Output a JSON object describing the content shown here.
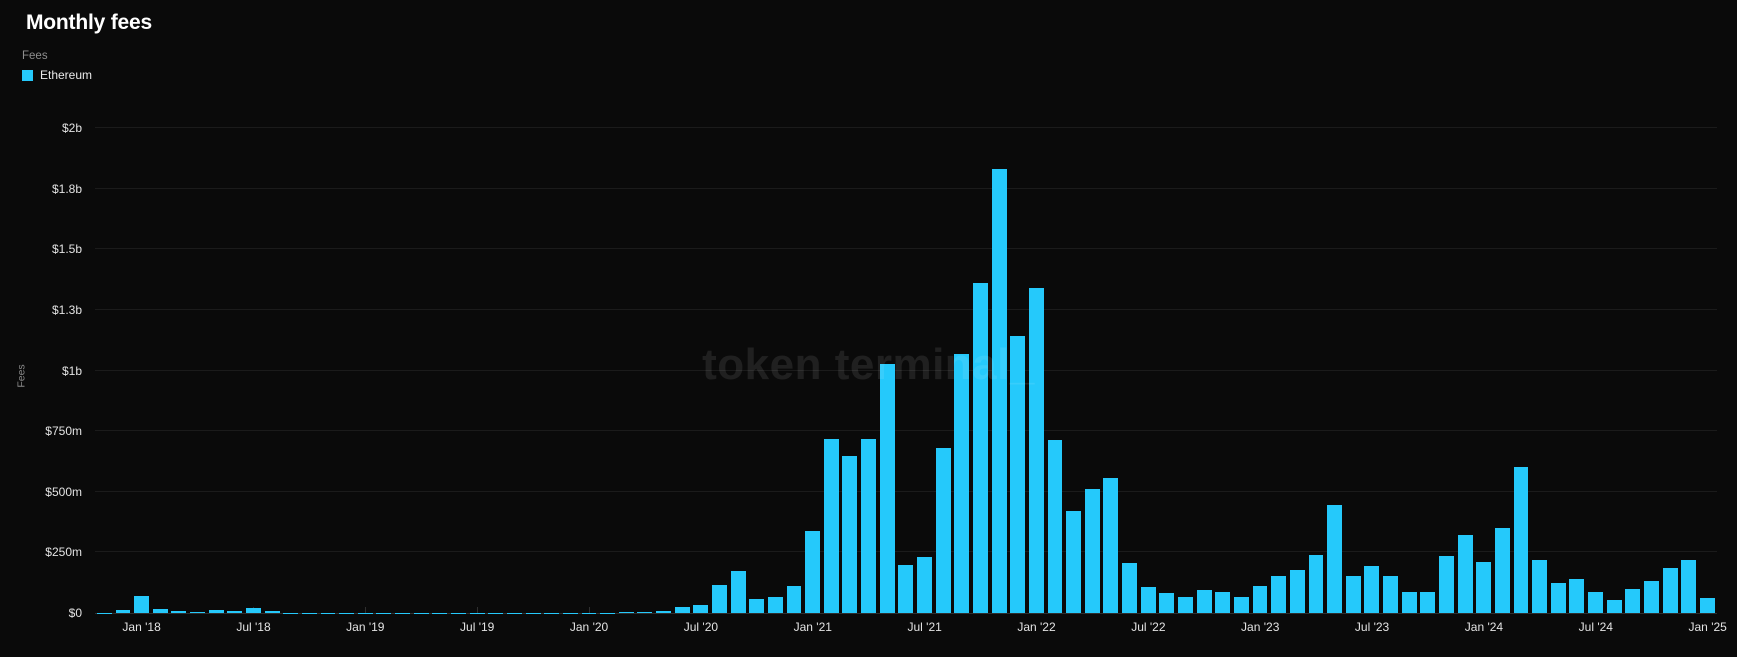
{
  "header": {
    "title": "Monthly fees",
    "metric_label": "Fees"
  },
  "legend": {
    "items": [
      {
        "label": "Ethereum",
        "color": "#25c9fb"
      }
    ]
  },
  "watermark": "token terminal_",
  "colors": {
    "background": "#0a0a0a",
    "accent": "#25c9fb",
    "gridline": "#1b1b1b",
    "axis_line": "#2f2f2f",
    "text_primary": "#ffffff",
    "text_axis": "#e3e3e3",
    "text_muted": "#8f8f8f",
    "watermark": "rgba(255,255,255,0.09)"
  },
  "chart_data": {
    "type": "bar",
    "title": "Monthly fees",
    "series_name": "Ethereum",
    "ylabel": "Fees",
    "unit": "USD millions",
    "start_month": "2017-11",
    "end_month": "2025-01",
    "ylim": [
      0,
      2000
    ],
    "grid": true,
    "legend_position": "top-left",
    "values": [
      2,
      11,
      70,
      17,
      8,
      3,
      14,
      7,
      19,
      7,
      2,
      2,
      2,
      2,
      2,
      2,
      2,
      2,
      2,
      2,
      2,
      2,
      2,
      2,
      2,
      2,
      2,
      2,
      3,
      4,
      8,
      24,
      35,
      115,
      173,
      59,
      66,
      113,
      340,
      718,
      648,
      717,
      1026,
      197,
      231,
      682,
      1067,
      1360,
      1830,
      1143,
      1340,
      714,
      422,
      510,
      557,
      205,
      106,
      84,
      67,
      95,
      85,
      67,
      111,
      154,
      177,
      240,
      445,
      154,
      194,
      154,
      85,
      85,
      235,
      322,
      209,
      349,
      603,
      219,
      125,
      140,
      88,
      54,
      99,
      133,
      187,
      219,
      61
    ],
    "y_ticks": [
      {
        "value": 0,
        "label": "$0"
      },
      {
        "value": 250,
        "label": "$250m"
      },
      {
        "value": 500,
        "label": "$500m"
      },
      {
        "value": 750,
        "label": "$750m"
      },
      {
        "value": 1000,
        "label": "$1b"
      },
      {
        "value": 1250,
        "label": "$1.3b"
      },
      {
        "value": 1500,
        "label": "$1.5b"
      },
      {
        "value": 1750,
        "label": "$1.8b"
      },
      {
        "value": 2000,
        "label": "$2b"
      }
    ],
    "x_ticks": [
      {
        "label": "Jan '18",
        "month_index": 2
      },
      {
        "label": "Jul '18",
        "month_index": 8
      },
      {
        "label": "Jan '19",
        "month_index": 14
      },
      {
        "label": "Jul '19",
        "month_index": 20
      },
      {
        "label": "Jan '20",
        "month_index": 26
      },
      {
        "label": "Jul '20",
        "month_index": 32
      },
      {
        "label": "Jan '21",
        "month_index": 38
      },
      {
        "label": "Jul '21",
        "month_index": 44
      },
      {
        "label": "Jan '22",
        "month_index": 50
      },
      {
        "label": "Jul '22",
        "month_index": 56
      },
      {
        "label": "Jan '23",
        "month_index": 62
      },
      {
        "label": "Jul '23",
        "month_index": 68
      },
      {
        "label": "Jan '24",
        "month_index": 74
      },
      {
        "label": "Jul '24",
        "month_index": 80
      },
      {
        "label": "Jan '25",
        "month_index": 86
      }
    ]
  }
}
